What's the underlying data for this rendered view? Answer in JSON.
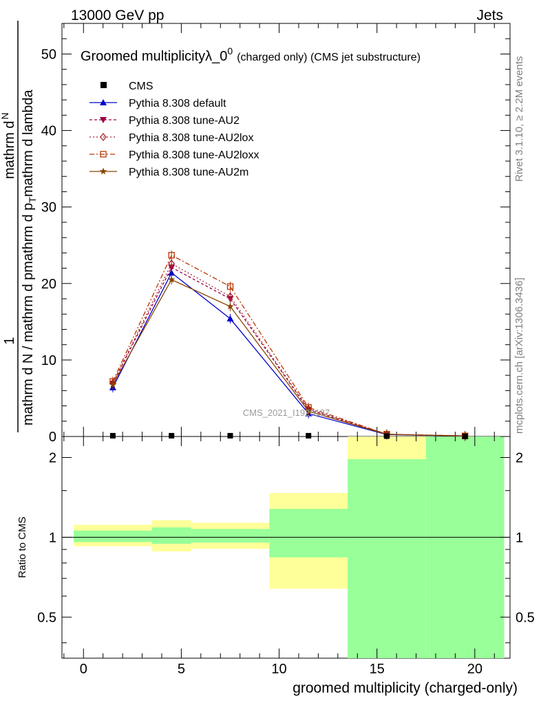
{
  "header": {
    "left": "13000 GeV pp",
    "right": "Jets"
  },
  "side_labels": {
    "rivet": "Rivet 3.1.10, ≥ 2.2M events",
    "mcplots": "mcplots.cern.ch [arXiv:1306.3436]"
  },
  "watermark": "CMS_2021_I1920187",
  "chart_data": [
    {
      "type": "line",
      "title": "Groomed multiplicityλ_0",
      "title_sup": "0",
      "title_note": "(charged only) (CMS jet substructure)",
      "ylabel_numer": "1",
      "ylabel_denom": "mathrm d N / mathrm d p",
      "ylabel_tail": "mathrm d p",
      "ylabel_tail2": "mathrm d lambda",
      "ylabel_top": "mathrm d",
      "ylabel_top_n": "N",
      "ylabel_mid": "mathrm d p",
      "ylabel_mid2": "mathrm d lambda",
      "ylabel_sub": "T",
      "ylim": [
        0,
        54
      ],
      "yticks": [
        0,
        10,
        20,
        30,
        40,
        50
      ],
      "xlim": [
        -1.1,
        21.8
      ],
      "xticks": [
        0,
        5,
        10,
        15,
        20
      ],
      "grid": false,
      "legend_position": "top-left",
      "cms": {
        "name": "CMS",
        "x": [
          1.5,
          4.5,
          7.5,
          11.5,
          15.5,
          19.5
        ],
        "y": [
          0.1,
          0.1,
          0.1,
          0.1,
          0.05,
          0.02
        ]
      },
      "series": [
        {
          "name": "Pythia 8.308 default",
          "color": "#0000cc",
          "dash": "",
          "marker": "triangle",
          "x": [
            1.5,
            4.5,
            7.5,
            11.5,
            15.5,
            19.5
          ],
          "y": [
            6.4,
            21.4,
            15.4,
            3.0,
            0.25,
            0.06
          ]
        },
        {
          "name": "Pythia 8.308 tune-AU2",
          "color": "#990044",
          "dash": "4,3",
          "marker": "triangle-down",
          "x": [
            1.5,
            4.5,
            7.5,
            11.5,
            15.5,
            19.5
          ],
          "y": [
            6.9,
            22.1,
            18.0,
            3.5,
            0.3,
            0.07
          ]
        },
        {
          "name": "Pythia 8.308 tune-AU2lox",
          "color": "#aa2233",
          "dash": "2,3",
          "marker": "diamond",
          "x": [
            1.5,
            4.5,
            7.5,
            11.5,
            15.5,
            19.5
          ],
          "y": [
            7.0,
            22.6,
            18.3,
            3.6,
            0.3,
            0.07
          ]
        },
        {
          "name": "Pythia 8.308 tune-AU2loxx",
          "color": "#bb3300",
          "dash": "7,3,2,3",
          "marker": "square",
          "x": [
            1.5,
            4.5,
            7.5,
            11.5,
            15.5,
            19.5
          ],
          "y": [
            7.2,
            23.7,
            19.6,
            3.8,
            0.3,
            0.08
          ]
        },
        {
          "name": "Pythia 8.308 tune-AU2m",
          "color": "#884400",
          "dash": "",
          "marker": "star",
          "x": [
            1.5,
            4.5,
            7.5,
            11.5,
            15.5,
            19.5
          ],
          "y": [
            6.8,
            20.5,
            17.0,
            3.3,
            0.28,
            0.06
          ]
        }
      ]
    },
    {
      "type": "area",
      "ylabel": "Ratio to CMS",
      "xlabel": "groomed multiplicity (charged-only)",
      "ylim": [
        0.35,
        2.4
      ],
      "log_y": true,
      "yticks": [
        0.5,
        1,
        2
      ],
      "xlim": [
        -1.1,
        21.8
      ],
      "xticks": [
        0,
        5,
        10,
        15,
        20
      ],
      "reference": 1,
      "bins": [
        {
          "lo": -0.5,
          "hi": 3.5,
          "stat": [
            0.96,
            1.06
          ],
          "total": [
            0.925,
            1.115
          ]
        },
        {
          "lo": 3.5,
          "hi": 5.5,
          "stat": [
            0.945,
            1.09
          ],
          "total": [
            0.885,
            1.16
          ]
        },
        {
          "lo": 5.5,
          "hi": 9.5,
          "stat": [
            0.955,
            1.075
          ],
          "total": [
            0.905,
            1.135
          ]
        },
        {
          "lo": 9.5,
          "hi": 13.5,
          "stat": [
            0.84,
            1.28
          ],
          "total": [
            0.64,
            1.47
          ]
        },
        {
          "lo": 13.5,
          "hi": 17.5,
          "stat": [
            0.35,
            1.97
          ],
          "total": [
            0.35,
            2.4
          ]
        },
        {
          "lo": 17.5,
          "hi": 21.5,
          "stat": [
            0.35,
            2.4
          ],
          "total": [
            0.35,
            2.4
          ]
        }
      ],
      "colors": {
        "stat": "#99ff99",
        "total": "#ffff99"
      }
    }
  ]
}
